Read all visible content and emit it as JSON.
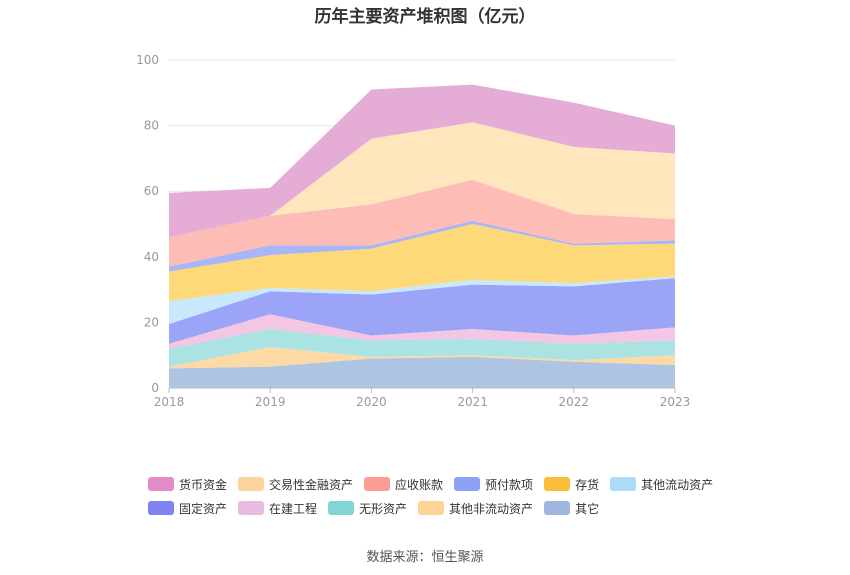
{
  "title": "历年主要资产堆积图（亿元）",
  "source": "数据来源：恒生聚源",
  "chart_data": {
    "type": "area",
    "stacked": true,
    "x": [
      "2018",
      "2019",
      "2020",
      "2021",
      "2022",
      "2023"
    ],
    "ylim": [
      0,
      100
    ],
    "yticks": [
      "0",
      "20",
      "40",
      "60",
      "80",
      "100"
    ],
    "grid": true,
    "legend_position": "bottom",
    "series": [
      {
        "name": "其它",
        "color": "#aec4e3",
        "values": [
          6,
          6.5,
          9,
          9.5,
          8,
          7
        ]
      },
      {
        "name": "其他非流动资产",
        "color": "#fcd9a5",
        "values": [
          0.5,
          6,
          0.5,
          0.5,
          0.5,
          3
        ]
      },
      {
        "name": "无形资产",
        "color": "#abe2e2",
        "values": [
          5.5,
          5.5,
          5,
          5,
          5,
          4.5
        ]
      },
      {
        "name": "在建工程",
        "color": "#f3c6e4",
        "values": [
          1.5,
          4.5,
          1.5,
          3,
          2.5,
          4
        ]
      },
      {
        "name": "固定资产",
        "color": "#9ca4f7",
        "values": [
          6,
          7,
          12.5,
          13.5,
          15,
          15
        ]
      },
      {
        "name": "其他流动资产",
        "color": "#c8e9fb",
        "values": [
          7,
          1,
          1,
          1.5,
          1,
          0.5
        ]
      },
      {
        "name": "存货",
        "color": "#fdd97a",
        "values": [
          9,
          10,
          13,
          17,
          11.5,
          10
        ]
      },
      {
        "name": "预付款项",
        "color": "#a9b6f6",
        "values": [
          1.5,
          3,
          1,
          1,
          0.5,
          1
        ]
      },
      {
        "name": "应收账款",
        "color": "#fdbcb5",
        "values": [
          9,
          9,
          12.5,
          12.5,
          9,
          6.5
        ]
      },
      {
        "name": "交易性金融资产",
        "color": "#ffe6bc",
        "values": [
          0,
          0,
          20,
          17.5,
          20.5,
          20
        ]
      },
      {
        "name": "货币资金",
        "color": "#e5add6",
        "values": [
          13.5,
          8.5,
          15,
          11.5,
          13.5,
          8.5
        ]
      }
    ]
  },
  "legend": {
    "rows": [
      [
        {
          "label": "货币资金",
          "color": "#e28cc8"
        },
        {
          "label": "交易性金融资产",
          "color": "#fdd49b"
        },
        {
          "label": "应收账款",
          "color": "#fc9d92"
        },
        {
          "label": "预付款项",
          "color": "#8ea1f4"
        },
        {
          "label": "存货",
          "color": "#fcbf3c"
        },
        {
          "label": "其他流动资产",
          "color": "#acdcf7"
        }
      ],
      [
        {
          "label": "固定资产",
          "color": "#7f83ef"
        },
        {
          "label": "在建工程",
          "color": "#e8bce0"
        },
        {
          "label": "无形资产",
          "color": "#80d6d3"
        },
        {
          "label": "其他非流动资产",
          "color": "#fdd496"
        },
        {
          "label": "其它",
          "color": "#9fb7df"
        }
      ]
    ]
  }
}
